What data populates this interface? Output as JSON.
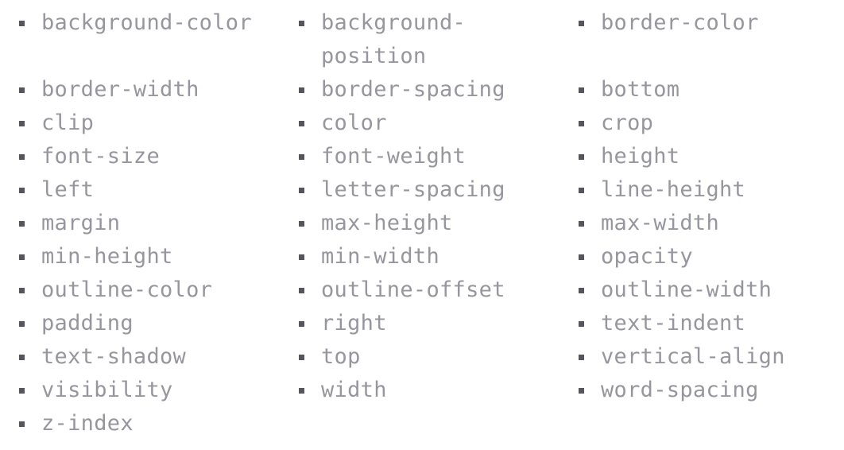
{
  "properties": [
    "background-color",
    "background-position",
    "border-color",
    "border-width",
    "border-spacing",
    "bottom",
    "clip",
    "color",
    "crop",
    "font-size",
    "font-weight",
    "height",
    "left",
    "letter-spacing",
    "line-height",
    "margin",
    "max-height",
    "max-width",
    "min-height",
    "min-width",
    "opacity",
    "outline-color",
    "outline-offset",
    "outline-width",
    "padding",
    "right",
    "text-indent",
    "text-shadow",
    "top",
    "vertical-align",
    "visibility",
    "width",
    "word-spacing",
    "z-index"
  ]
}
